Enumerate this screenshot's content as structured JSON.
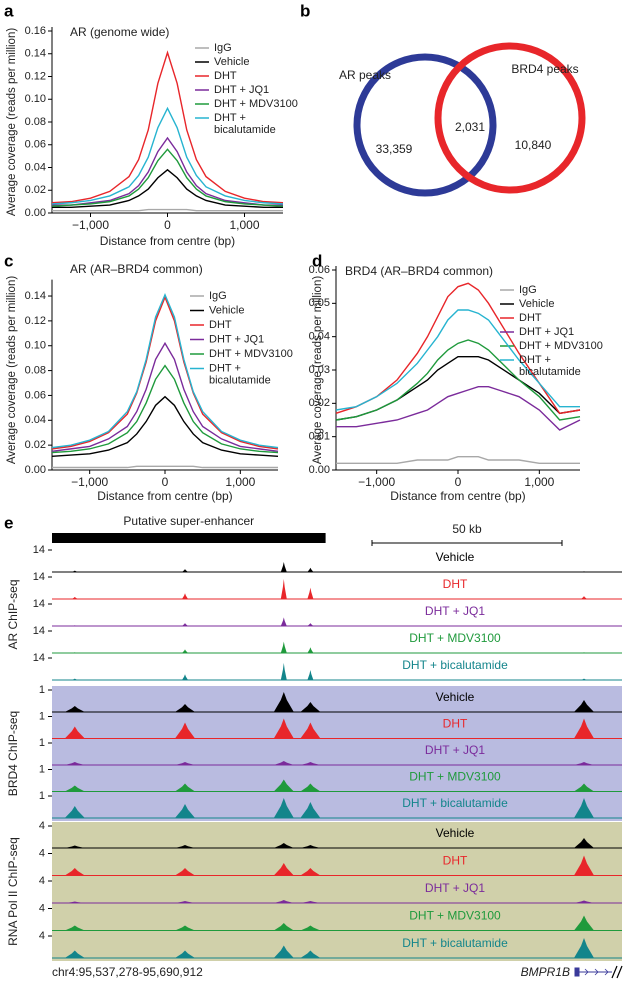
{
  "chart_data": [
    {
      "type": "line",
      "panel": "a",
      "title": "AR (genome wide)",
      "xlabel": "Distance from centre (bp)",
      "ylabel": "Average coverage (reads per million)",
      "xlim": [
        -1500,
        1500
      ],
      "xticks": [
        {
          "value": -1000,
          "label": "−1,000"
        },
        0,
        {
          "value": 1000,
          "label": "1,000"
        }
      ],
      "ylim": [
        0,
        0.16
      ],
      "yticks": [
        {
          "value": 0,
          "label": "0.00"
        },
        {
          "value": 0.02,
          "label": "0.02"
        },
        {
          "value": 0.04,
          "label": "0.04"
        },
        {
          "value": 0.06,
          "label": "0.06"
        },
        {
          "value": 0.08,
          "label": "0.08"
        },
        {
          "value": 0.1,
          "label": "0.10"
        },
        {
          "value": 0.12,
          "label": "0.12"
        },
        {
          "value": 0.14,
          "label": "0.14"
        },
        {
          "value": 0.16,
          "label": "0.16"
        }
      ],
      "x": [
        -1500,
        -1250,
        -1000,
        -750,
        -500,
        -375,
        -250,
        -125,
        0,
        125,
        250,
        375,
        500,
        750,
        1000,
        1250,
        1500
      ],
      "series": [
        {
          "name": "IgG",
          "color": "#a8a8a8",
          "values": [
            0.002,
            0.002,
            0.002,
            0.002,
            0.002,
            0.002,
            0.003,
            0.003,
            0.003,
            0.003,
            0.003,
            0.002,
            0.002,
            0.002,
            0.002,
            0.002,
            0.002
          ]
        },
        {
          "name": "Vehicle",
          "color": "#000000",
          "values": [
            0.005,
            0.005,
            0.006,
            0.007,
            0.011,
            0.015,
            0.021,
            0.031,
            0.038,
            0.031,
            0.021,
            0.015,
            0.011,
            0.007,
            0.006,
            0.005,
            0.005
          ]
        },
        {
          "name": "DHT",
          "color": "#e8262a",
          "values": [
            0.009,
            0.01,
            0.013,
            0.019,
            0.032,
            0.047,
            0.073,
            0.114,
            0.141,
            0.114,
            0.073,
            0.047,
            0.032,
            0.019,
            0.013,
            0.01,
            0.009
          ]
        },
        {
          "name": "DHT + JQ1",
          "color": "#7b2b9b",
          "values": [
            0.007,
            0.007,
            0.009,
            0.011,
            0.017,
            0.024,
            0.036,
            0.054,
            0.066,
            0.054,
            0.036,
            0.024,
            0.017,
            0.011,
            0.009,
            0.007,
            0.007
          ]
        },
        {
          "name": "DHT + MDV3100",
          "color": "#1f9a3c",
          "values": [
            0.006,
            0.007,
            0.008,
            0.01,
            0.015,
            0.021,
            0.031,
            0.046,
            0.056,
            0.046,
            0.031,
            0.021,
            0.015,
            0.01,
            0.008,
            0.007,
            0.006
          ]
        },
        {
          "name": "DHT + bicalutamide",
          "color": "#27b4d0",
          "values": [
            0.008,
            0.009,
            0.011,
            0.015,
            0.023,
            0.033,
            0.049,
            0.075,
            0.092,
            0.075,
            0.049,
            0.033,
            0.023,
            0.015,
            0.011,
            0.009,
            0.008
          ]
        }
      ]
    },
    {
      "type": "venn",
      "panel": "b",
      "sets": [
        {
          "name": "AR peaks",
          "color": "#2d3a97"
        },
        {
          "name": "BRD4 peaks",
          "color": "#e8262a"
        }
      ],
      "values": [
        33359,
        2031,
        10840
      ],
      "value_labels": [
        "33,359",
        "2,031",
        "10,840"
      ]
    },
    {
      "type": "line",
      "panel": "c",
      "title": "AR (AR–BRD4 common)",
      "xlabel": "Distance from centre (bp)",
      "ylabel": "Average coverage (reads per million)",
      "xlim": [
        -1500,
        1500
      ],
      "xticks": [
        {
          "value": -1000,
          "label": "−1,000"
        },
        0,
        {
          "value": 1000,
          "label": "1,000"
        }
      ],
      "ylim": [
        0,
        0.15
      ],
      "yticks": [
        {
          "value": 0,
          "label": "0.00"
        },
        {
          "value": 0.02,
          "label": "0.02"
        },
        {
          "value": 0.04,
          "label": "0.04"
        },
        {
          "value": 0.06,
          "label": "0.06"
        },
        {
          "value": 0.08,
          "label": "0.08"
        },
        {
          "value": 0.1,
          "label": "0.10"
        },
        {
          "value": 0.12,
          "label": "0.12"
        },
        {
          "value": 0.14,
          "label": "0.14"
        }
      ],
      "x": [
        -1500,
        -1250,
        -1000,
        -750,
        -500,
        -375,
        -250,
        -125,
        0,
        125,
        250,
        375,
        500,
        750,
        1000,
        1250,
        1500
      ],
      "series": [
        {
          "name": "IgG",
          "color": "#a8a8a8",
          "values": [
            0.002,
            0.002,
            0.002,
            0.002,
            0.002,
            0.003,
            0.003,
            0.003,
            0.003,
            0.003,
            0.003,
            0.003,
            0.002,
            0.002,
            0.002,
            0.002,
            0.002
          ]
        },
        {
          "name": "Vehicle",
          "color": "#000000",
          "values": [
            0.011,
            0.012,
            0.013,
            0.016,
            0.022,
            0.029,
            0.039,
            0.052,
            0.059,
            0.052,
            0.039,
            0.029,
            0.022,
            0.016,
            0.013,
            0.012,
            0.011
          ]
        },
        {
          "name": "DHT",
          "color": "#e8262a",
          "values": [
            0.017,
            0.019,
            0.023,
            0.03,
            0.045,
            0.062,
            0.087,
            0.12,
            0.139,
            0.12,
            0.087,
            0.062,
            0.045,
            0.03,
            0.023,
            0.019,
            0.017
          ]
        },
        {
          "name": "DHT + JQ1",
          "color": "#7b2b9b",
          "values": [
            0.015,
            0.017,
            0.019,
            0.025,
            0.035,
            0.047,
            0.065,
            0.089,
            0.102,
            0.089,
            0.065,
            0.047,
            0.035,
            0.025,
            0.019,
            0.017,
            0.015
          ]
        },
        {
          "name": "DHT + MDV3100",
          "color": "#1f9a3c",
          "values": [
            0.014,
            0.015,
            0.017,
            0.021,
            0.03,
            0.039,
            0.054,
            0.073,
            0.084,
            0.073,
            0.054,
            0.039,
            0.03,
            0.021,
            0.017,
            0.015,
            0.014
          ]
        },
        {
          "name": "DHT + bicalutamide",
          "color": "#27b4d0",
          "values": [
            0.018,
            0.02,
            0.024,
            0.031,
            0.047,
            0.063,
            0.089,
            0.123,
            0.141,
            0.123,
            0.089,
            0.063,
            0.047,
            0.031,
            0.024,
            0.02,
            0.018
          ]
        }
      ]
    },
    {
      "type": "line",
      "panel": "d",
      "title": "BRD4 (AR–BRD4 common)",
      "xlabel": "Distance from centre (bp)",
      "ylabel": "Average coverage (reads per million)",
      "xlim": [
        -1500,
        1500
      ],
      "xticks": [
        {
          "value": -1000,
          "label": "−1,000"
        },
        0,
        {
          "value": 1000,
          "label": "1,000"
        }
      ],
      "ylim": [
        0,
        0.06
      ],
      "yticks": [
        {
          "value": 0,
          "label": "0.00"
        },
        {
          "value": 0.01,
          "label": "0.01"
        },
        {
          "value": 0.02,
          "label": "0.02"
        },
        {
          "value": 0.03,
          "label": "0.03"
        },
        {
          "value": 0.04,
          "label": "0.04"
        },
        {
          "value": 0.05,
          "label": "0.05"
        },
        {
          "value": 0.06,
          "label": "0.06"
        }
      ],
      "x": [
        -1500,
        -1250,
        -1000,
        -750,
        -500,
        -375,
        -250,
        -125,
        0,
        125,
        250,
        375,
        500,
        750,
        1000,
        1250,
        1500
      ],
      "series": [
        {
          "name": "IgG",
          "color": "#a8a8a8",
          "values": [
            0.002,
            0.002,
            0.002,
            0.002,
            0.003,
            0.003,
            0.003,
            0.003,
            0.004,
            0.004,
            0.004,
            0.003,
            0.003,
            0.003,
            0.002,
            0.002,
            0.002
          ]
        },
        {
          "name": "Vehicle",
          "color": "#000000",
          "values": [
            0.015,
            0.016,
            0.018,
            0.021,
            0.025,
            0.027,
            0.03,
            0.032,
            0.034,
            0.034,
            0.034,
            0.033,
            0.031,
            0.027,
            0.023,
            0.017,
            0.018
          ]
        },
        {
          "name": "DHT",
          "color": "#e8262a",
          "values": [
            0.017,
            0.019,
            0.022,
            0.027,
            0.035,
            0.04,
            0.046,
            0.052,
            0.055,
            0.056,
            0.054,
            0.05,
            0.045,
            0.035,
            0.026,
            0.017,
            0.018
          ]
        },
        {
          "name": "DHT + JQ1",
          "color": "#7b2b9b",
          "values": [
            0.013,
            0.013,
            0.014,
            0.015,
            0.017,
            0.018,
            0.02,
            0.022,
            0.023,
            0.024,
            0.025,
            0.025,
            0.024,
            0.022,
            0.018,
            0.012,
            0.015
          ]
        },
        {
          "name": "DHT + MDV3100",
          "color": "#1f9a3c",
          "values": [
            0.015,
            0.016,
            0.018,
            0.021,
            0.026,
            0.029,
            0.033,
            0.036,
            0.038,
            0.039,
            0.038,
            0.036,
            0.033,
            0.027,
            0.022,
            0.015,
            0.016
          ]
        },
        {
          "name": "DHT + bicalutamide",
          "color": "#27b4d0",
          "values": [
            0.018,
            0.019,
            0.022,
            0.026,
            0.032,
            0.036,
            0.04,
            0.045,
            0.048,
            0.048,
            0.047,
            0.045,
            0.041,
            0.033,
            0.026,
            0.019,
            0.019
          ]
        }
      ]
    },
    {
      "type": "tracks",
      "panel": "e",
      "region": "chr4:95,537,278-95,690,912",
      "gene": "BMPR1B",
      "xlim": [
        0,
        150
      ],
      "super_enhancer": {
        "label": "Putative super-enhancer",
        "x": [
          0,
          72
        ]
      },
      "scale_bar": {
        "value": 50,
        "label": "50 kb"
      },
      "x": [
        6,
        35,
        61,
        68,
        140
      ],
      "groups": [
        {
          "name": "AR ChIP-seq",
          "scale": 14,
          "background": "#ffffff",
          "tracks": [
            {
              "name": "Vehicle",
              "color": "#000000",
              "values": [
                1,
                2,
                7,
                3,
                0.5
              ]
            },
            {
              "name": "DHT",
              "color": "#e8262a",
              "values": [
                1.5,
                4,
                14,
                8,
                2
              ]
            },
            {
              "name": "DHT + JQ1",
              "color": "#7b2b9b",
              "values": [
                0.5,
                2,
                6,
                2,
                0.3
              ]
            },
            {
              "name": "DHT + MDV3100",
              "color": "#1f9a3c",
              "values": [
                0.5,
                2.5,
                8,
                4,
                0.5
              ]
            },
            {
              "name": "DHT + bicalutamide",
              "color": "#13858b",
              "values": [
                1,
                4,
                12,
                7,
                1
              ]
            }
          ]
        },
        {
          "name": "BRD4 ChIP-seq",
          "scale": 1,
          "background": "#b9bbe0",
          "tracks": [
            {
              "name": "Vehicle",
              "color": "#000000",
              "values": [
                0.3,
                0.4,
                1,
                0.5,
                0.6
              ]
            },
            {
              "name": "DHT",
              "color": "#e8262a",
              "values": [
                0.6,
                0.8,
                1,
                0.8,
                1
              ]
            },
            {
              "name": "DHT + JQ1",
              "color": "#7b2b9b",
              "values": [
                0.15,
                0.15,
                0.2,
                0.15,
                0.15
              ]
            },
            {
              "name": "DHT + MDV3100",
              "color": "#1f9a3c",
              "values": [
                0.3,
                0.4,
                0.6,
                0.4,
                0.4
              ]
            },
            {
              "name": "DHT + bicalutamide",
              "color": "#13858b",
              "values": [
                0.6,
                0.7,
                1,
                0.8,
                1
              ]
            }
          ]
        },
        {
          "name": "RNA Pol II ChIP-seq",
          "scale": 4,
          "background": "#d0d0aa",
          "tracks": [
            {
              "name": "Vehicle",
              "color": "#000000",
              "values": [
                0.5,
                0.6,
                1,
                0.6,
                2
              ]
            },
            {
              "name": "DHT",
              "color": "#e8262a",
              "values": [
                1.5,
                1.5,
                2.5,
                1.5,
                4
              ]
            },
            {
              "name": "DHT + JQ1",
              "color": "#7b2b9b",
              "values": [
                0.3,
                0.4,
                0.6,
                0.4,
                0.5
              ]
            },
            {
              "name": "DHT + MDV3100",
              "color": "#1f9a3c",
              "values": [
                1,
                1,
                1.5,
                1,
                3
              ]
            },
            {
              "name": "DHT + bicalutamide",
              "color": "#13858b",
              "values": [
                1.5,
                1.5,
                2.5,
                1.5,
                4
              ]
            }
          ]
        }
      ]
    }
  ]
}
